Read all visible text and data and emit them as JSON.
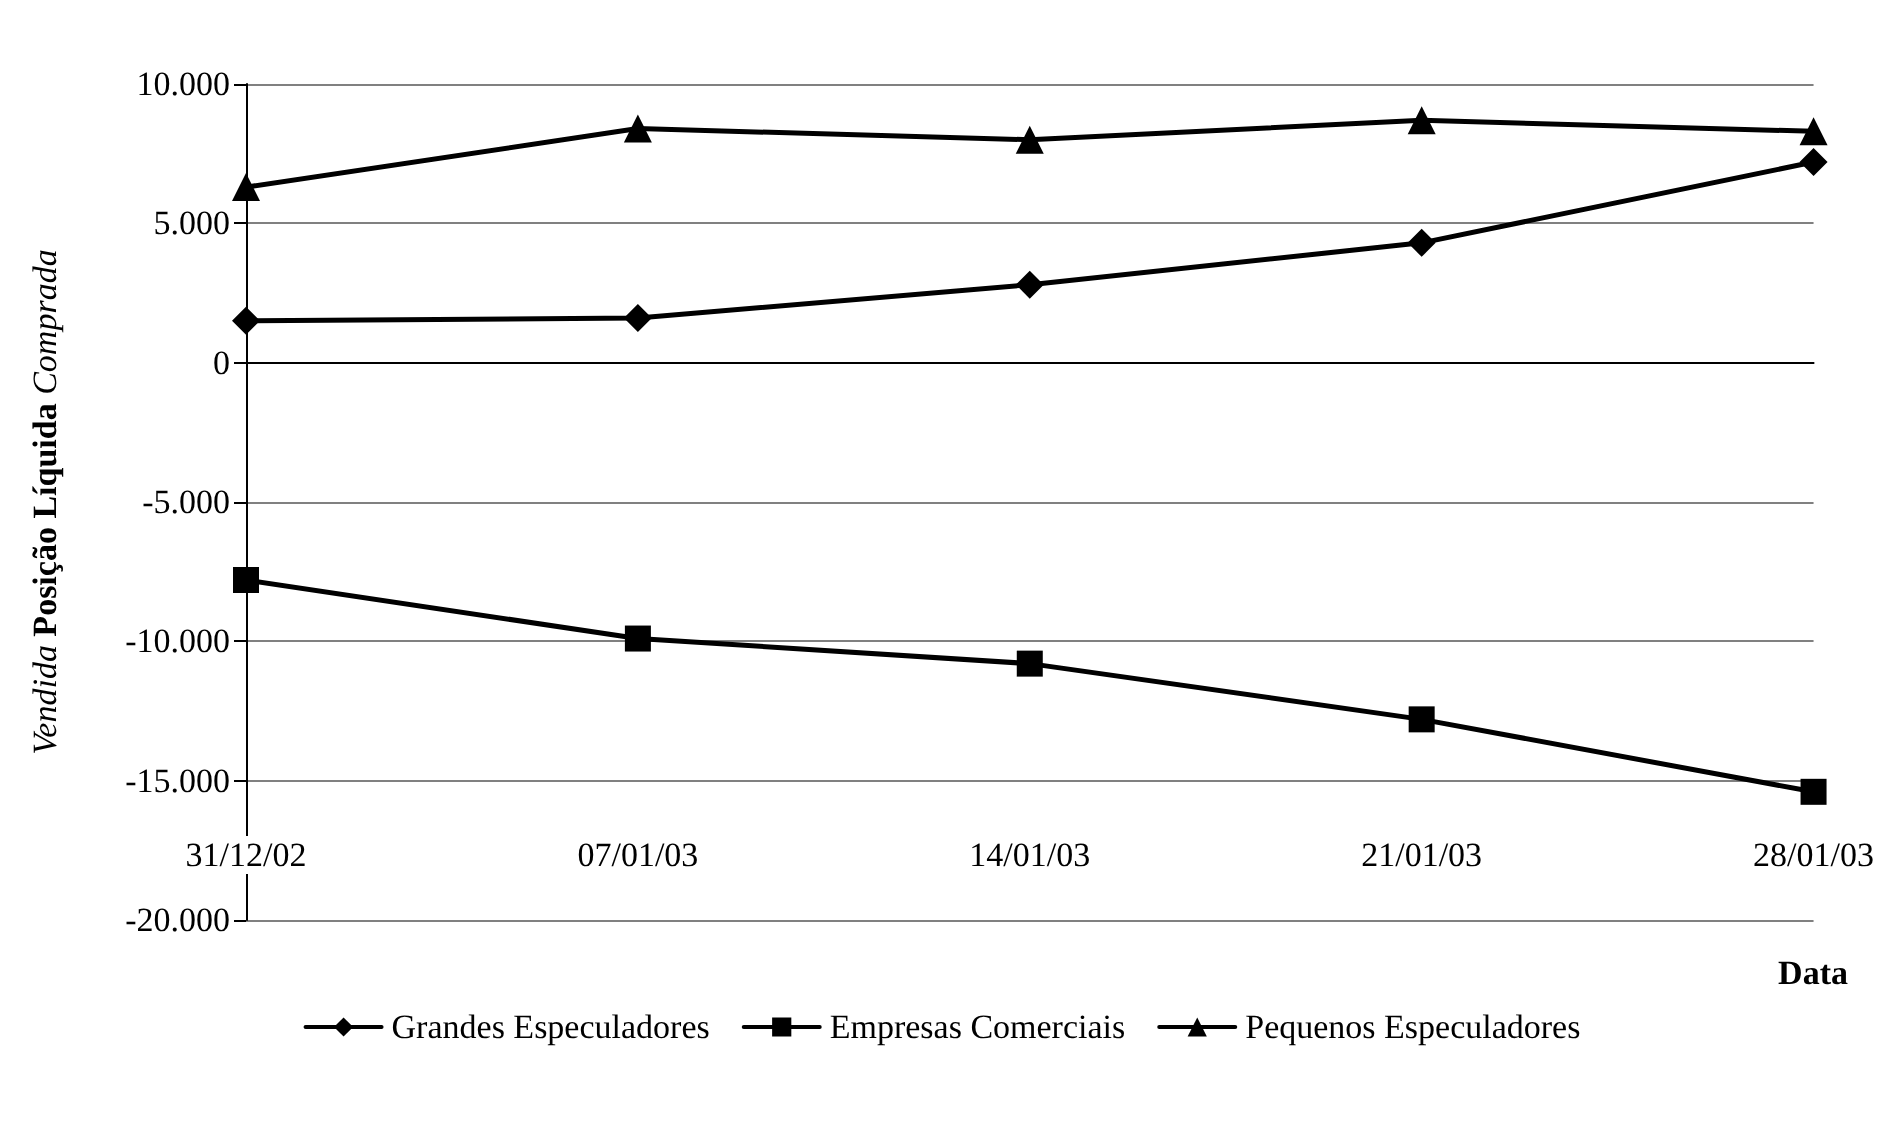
{
  "chart_data": {
    "type": "line",
    "ylabel": "Vendida Posição Líquida Comprada",
    "xlabel": "Data",
    "categories": [
      "31/12/02",
      "07/01/03",
      "14/01/03",
      "21/01/03",
      "28/01/03"
    ],
    "series": [
      {
        "name": "Grandes Especuladores",
        "color": "#000000",
        "marker": "diamond",
        "values": [
          1500,
          1600,
          2800,
          4300,
          7200
        ]
      },
      {
        "name": "Empresas Comerciais",
        "color": "#000000",
        "marker": "square",
        "values": [
          -7800,
          -9900,
          -10800,
          -12800,
          -15400
        ]
      },
      {
        "name": "Pequenos Especuladores",
        "color": "#000000",
        "marker": "triangle",
        "values": [
          6300,
          8400,
          8000,
          8700,
          8300
        ]
      }
    ],
    "ylim": [
      -20000,
      10000
    ],
    "yticks": [
      {
        "value": -20000,
        "label": "-20.000"
      },
      {
        "value": -15000,
        "label": "-15.000"
      },
      {
        "value": -10000,
        "label": "-10.000"
      },
      {
        "value": -5000,
        "label": "-5.000"
      },
      0,
      {
        "value": 5000,
        "label": "5.000"
      },
      {
        "value": 10000,
        "label": "10.000"
      }
    ],
    "grid": "y",
    "legend": "bottom",
    "line_style": "solid"
  }
}
